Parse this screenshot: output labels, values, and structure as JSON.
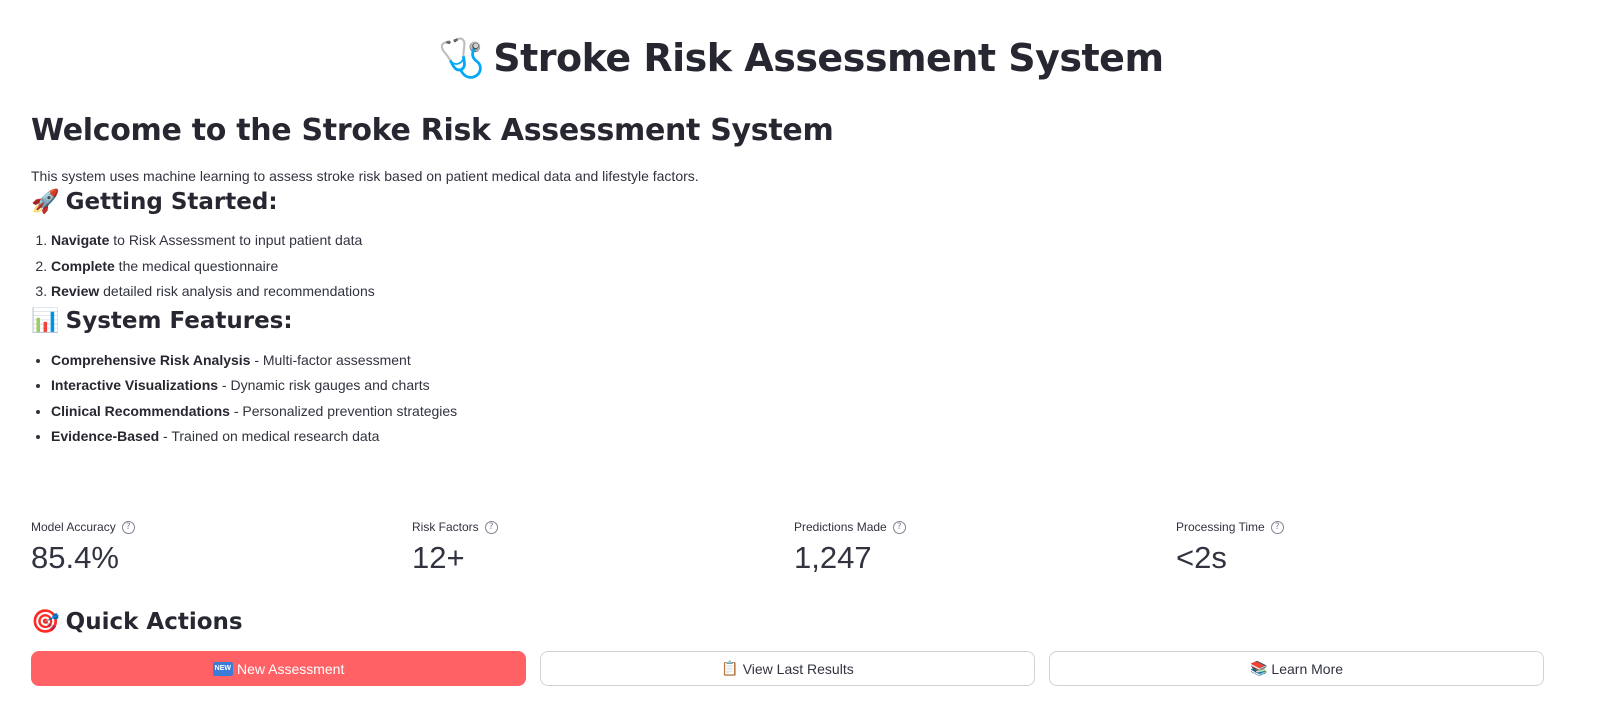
{
  "header": {
    "icon": "stethoscope-icon",
    "emoji": "🩺",
    "title": "Stroke Risk Assessment System"
  },
  "welcome": {
    "heading": "Welcome to the Stroke Risk Assessment System",
    "intro": "This system uses machine learning to assess stroke risk based on patient medical data and lifestyle factors."
  },
  "getting_started": {
    "emoji": "🚀",
    "heading": "Getting Started:",
    "steps": [
      {
        "bold": "Navigate",
        "text": " to Risk Assessment to input patient data"
      },
      {
        "bold": "Complete",
        "text": " the medical questionnaire"
      },
      {
        "bold": "Review",
        "text": " detailed risk analysis and recommendations"
      }
    ]
  },
  "features": {
    "emoji": "📊",
    "heading": "System Features:",
    "items": [
      {
        "bold": "Comprehensive Risk Analysis",
        "text": " - Multi-factor assessment"
      },
      {
        "bold": "Interactive Visualizations",
        "text": " - Dynamic risk gauges and charts"
      },
      {
        "bold": "Clinical Recommendations",
        "text": " - Personalized prevention strategies"
      },
      {
        "bold": "Evidence-Based",
        "text": " - Trained on medical research data"
      }
    ]
  },
  "metrics": [
    {
      "label": "Model Accuracy",
      "value": "85.4%"
    },
    {
      "label": "Risk Factors",
      "value": "12+"
    },
    {
      "label": "Predictions Made",
      "value": "1,247"
    },
    {
      "label": "Processing Time",
      "value": "<2s"
    }
  ],
  "quick_actions": {
    "emoji": "🎯",
    "heading": "Quick Actions",
    "buttons": [
      {
        "badge": "NEW",
        "label": "New Assessment"
      },
      {
        "emoji": "📋",
        "label": "View Last Results"
      },
      {
        "emoji": "📚",
        "label": "Learn More"
      }
    ]
  },
  "colors": {
    "primary_button": "#ff6165",
    "text": "#31333f",
    "heading": "#262730"
  }
}
